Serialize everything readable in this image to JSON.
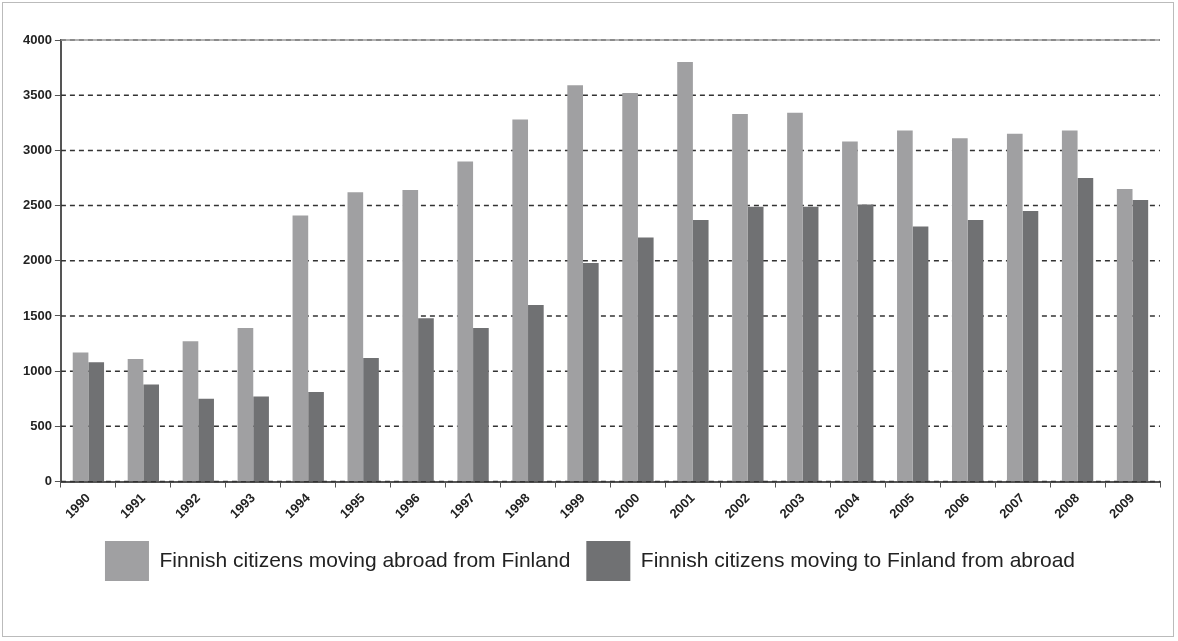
{
  "chart_data": {
    "type": "bar",
    "categories": [
      "1990",
      "1991",
      "1992",
      "1993",
      "1994",
      "1995",
      "1996",
      "1997",
      "1998",
      "1999",
      "2000",
      "2001",
      "2002",
      "2003",
      "2004",
      "2005",
      "2006",
      "2007",
      "2008",
      "2009"
    ],
    "series": [
      {
        "name": "Finnish citizens moving abroad from Finland",
        "color": "#a0a0a2",
        "values": [
          1170,
          1110,
          1270,
          1390,
          2410,
          2620,
          2640,
          2900,
          3280,
          3590,
          3520,
          3800,
          3330,
          3340,
          3080,
          3180,
          3110,
          3150,
          3180,
          2650
        ]
      },
      {
        "name": "Finnish citizens moving to Finland from abroad",
        "color": "#707173",
        "values": [
          1080,
          880,
          750,
          770,
          810,
          1120,
          1480,
          1390,
          1600,
          1980,
          2210,
          2370,
          2490,
          2490,
          2510,
          2310,
          2370,
          2450,
          2750,
          2550
        ]
      }
    ],
    "ylim": [
      0,
      4000
    ],
    "yticks": [
      0,
      500,
      1000,
      1500,
      2000,
      2500,
      3000,
      3500,
      4000
    ],
    "grid": "y",
    "legend": "bottom"
  }
}
